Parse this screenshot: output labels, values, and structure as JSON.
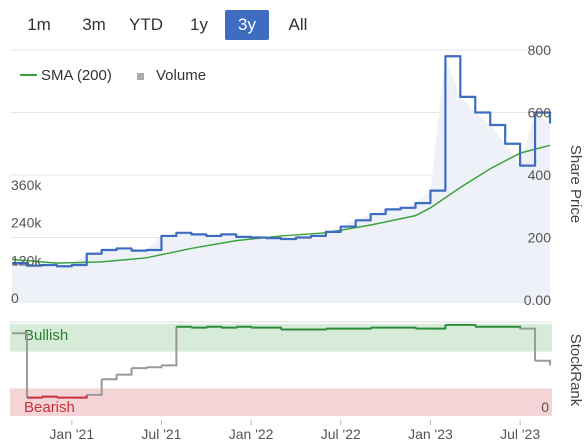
{
  "range_buttons": [
    {
      "label": "1m",
      "active": false
    },
    {
      "label": "3m",
      "active": false
    },
    {
      "label": "YTD",
      "active": false
    },
    {
      "label": "1y",
      "active": false
    },
    {
      "label": "3y",
      "active": true
    },
    {
      "label": "All",
      "active": false
    }
  ],
  "legend": [
    {
      "label": "SMA (200)",
      "kind": "line",
      "color": "#3aa23a"
    },
    {
      "label": "Volume",
      "kind": "square",
      "color": "#aaaaaa"
    }
  ],
  "colors": {
    "price": "#3d6cc0",
    "price_fill": "#eef1f8",
    "sma": "#3aa23a",
    "volume": "#c8c8c8",
    "rank_line": "#2e8b3e",
    "rank_low": "#c9303a",
    "rank_mid": "#999999",
    "bullish_zone": "#d6ecd9",
    "bearish_zone": "#f5d4d8",
    "bullish_text": "#2e7d32",
    "bearish_text": "#c9303a"
  },
  "chart_data": [
    {
      "type": "line",
      "title": "",
      "x_labels": [
        "Jan '21",
        "Jul '21",
        "Jan '22",
        "Jul '22",
        "Jan '23",
        "Jul '23"
      ],
      "y_right_label": "Share Price",
      "y_right_ticks": [
        "0.00",
        "200",
        "400",
        "600",
        "800"
      ],
      "y_right_range": [
        0,
        800
      ],
      "y_left_ticks": [
        "0",
        "120k",
        "240k",
        "360k"
      ],
      "series": [
        {
          "name": "",
          "role": "price",
          "x": [
            "2020-09",
            "2020-10",
            "2020-11",
            "2020-12",
            "2021-01",
            "2021-02",
            "2021-03",
            "2021-04",
            "2021-05",
            "2021-06",
            "2021-07",
            "2021-08",
            "2021-09",
            "2021-10",
            "2021-11",
            "2021-12",
            "2022-01",
            "2022-02",
            "2022-03",
            "2022-04",
            "2022-05",
            "2022-06",
            "2022-07",
            "2022-08",
            "2022-09",
            "2022-10",
            "2022-11",
            "2022-12",
            "2023-01",
            "2023-02",
            "2023-03",
            "2023-04",
            "2023-05",
            "2023-06",
            "2023-07",
            "2023-08",
            "2023-09"
          ],
          "values": [
            118,
            110,
            112,
            108,
            112,
            148,
            160,
            165,
            158,
            160,
            205,
            215,
            210,
            205,
            210,
            202,
            200,
            198,
            195,
            200,
            205,
            218,
            235,
            255,
            275,
            290,
            295,
            310,
            350,
            780,
            650,
            600,
            560,
            500,
            430,
            600,
            565
          ]
        },
        {
          "name": "SMA (200)",
          "role": "sma",
          "x": [
            "2020-09",
            "2020-12",
            "2021-03",
            "2021-06",
            "2021-09",
            "2021-12",
            "2022-03",
            "2022-06",
            "2022-09",
            "2022-12",
            "2023-01",
            "2023-03",
            "2023-05",
            "2023-07",
            "2023-09"
          ],
          "values": [
            130,
            118,
            122,
            135,
            165,
            190,
            205,
            215,
            240,
            270,
            295,
            360,
            420,
            470,
            495
          ]
        },
        {
          "name": "Volume",
          "role": "volume",
          "x": [
            "2020-10",
            "2021-01",
            "2021-03",
            "2021-06",
            "2021-09",
            "2021-12",
            "2022-03",
            "2022-06",
            "2022-09",
            "2022-12",
            "2023-01",
            "2023-02",
            "2023-03",
            "2023-05",
            "2023-07"
          ],
          "values": [
            12000,
            8000,
            28000,
            9000,
            15000,
            11000,
            7000,
            38000,
            9000,
            14000,
            42000,
            21000,
            26000,
            13000,
            17000
          ]
        }
      ]
    },
    {
      "type": "line",
      "title": "",
      "y_right_label": "StockRank",
      "y_right_ticks": [
        "0"
      ],
      "y_right_range": [
        0,
        100
      ],
      "zones": [
        {
          "label": "Bullish",
          "from": 70,
          "to": 100
        },
        {
          "label": "Bearish",
          "from": 0,
          "to": 30
        }
      ],
      "series": [
        {
          "name": "",
          "x": [
            "2020-09",
            "2020-10",
            "2020-11",
            "2020-12",
            "2021-01",
            "2021-02",
            "2021-03",
            "2021-04",
            "2021-05",
            "2021-06",
            "2021-07",
            "2021-08",
            "2021-09",
            "2021-10",
            "2021-11",
            "2021-12",
            "2022-01",
            "2022-03",
            "2022-06",
            "2022-09",
            "2022-12",
            "2023-01",
            "2023-02",
            "2023-04",
            "2023-07",
            "2023-08",
            "2023-09"
          ],
          "values": [
            90,
            20,
            21,
            20,
            20,
            23,
            40,
            45,
            52,
            53,
            55,
            97,
            96,
            97,
            96,
            97,
            96,
            94,
            95,
            96,
            95,
            95,
            99,
            97,
            95,
            60,
            55
          ]
        }
      ]
    }
  ]
}
